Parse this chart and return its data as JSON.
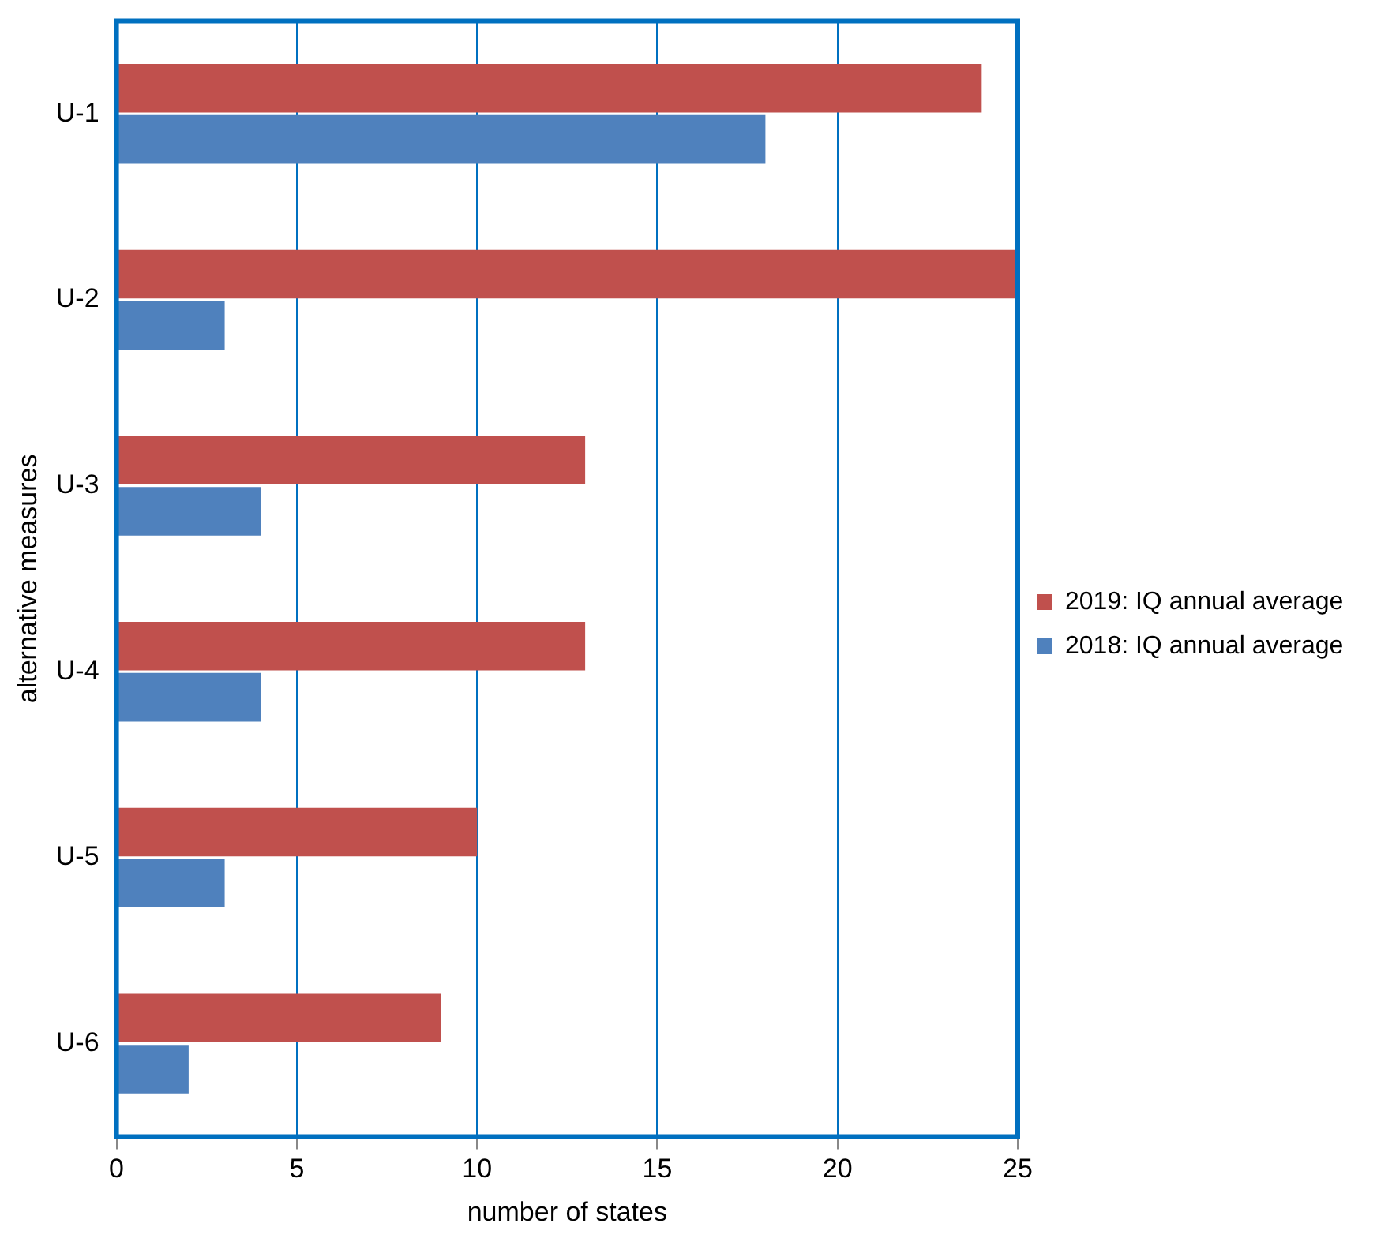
{
  "chart_data": {
    "type": "bar",
    "orientation": "horizontal",
    "xlabel": "number of states",
    "ylabel": "alternative measures",
    "categories": [
      "U-1",
      "U-2",
      "U-3",
      "U-4",
      "U-5",
      "U-6"
    ],
    "series": [
      {
        "name": "2019: IQ annual average",
        "color": "#c0504d",
        "values": [
          24,
          25,
          13,
          13,
          10,
          9
        ]
      },
      {
        "name": "2018: IQ annual average",
        "color": "#4f81bd",
        "values": [
          18,
          3,
          4,
          4,
          3,
          2
        ]
      }
    ],
    "xlim": [
      0,
      25
    ],
    "xticks": [
      0,
      5,
      10,
      15,
      20,
      25
    ],
    "grid": "x",
    "legend": "right"
  }
}
